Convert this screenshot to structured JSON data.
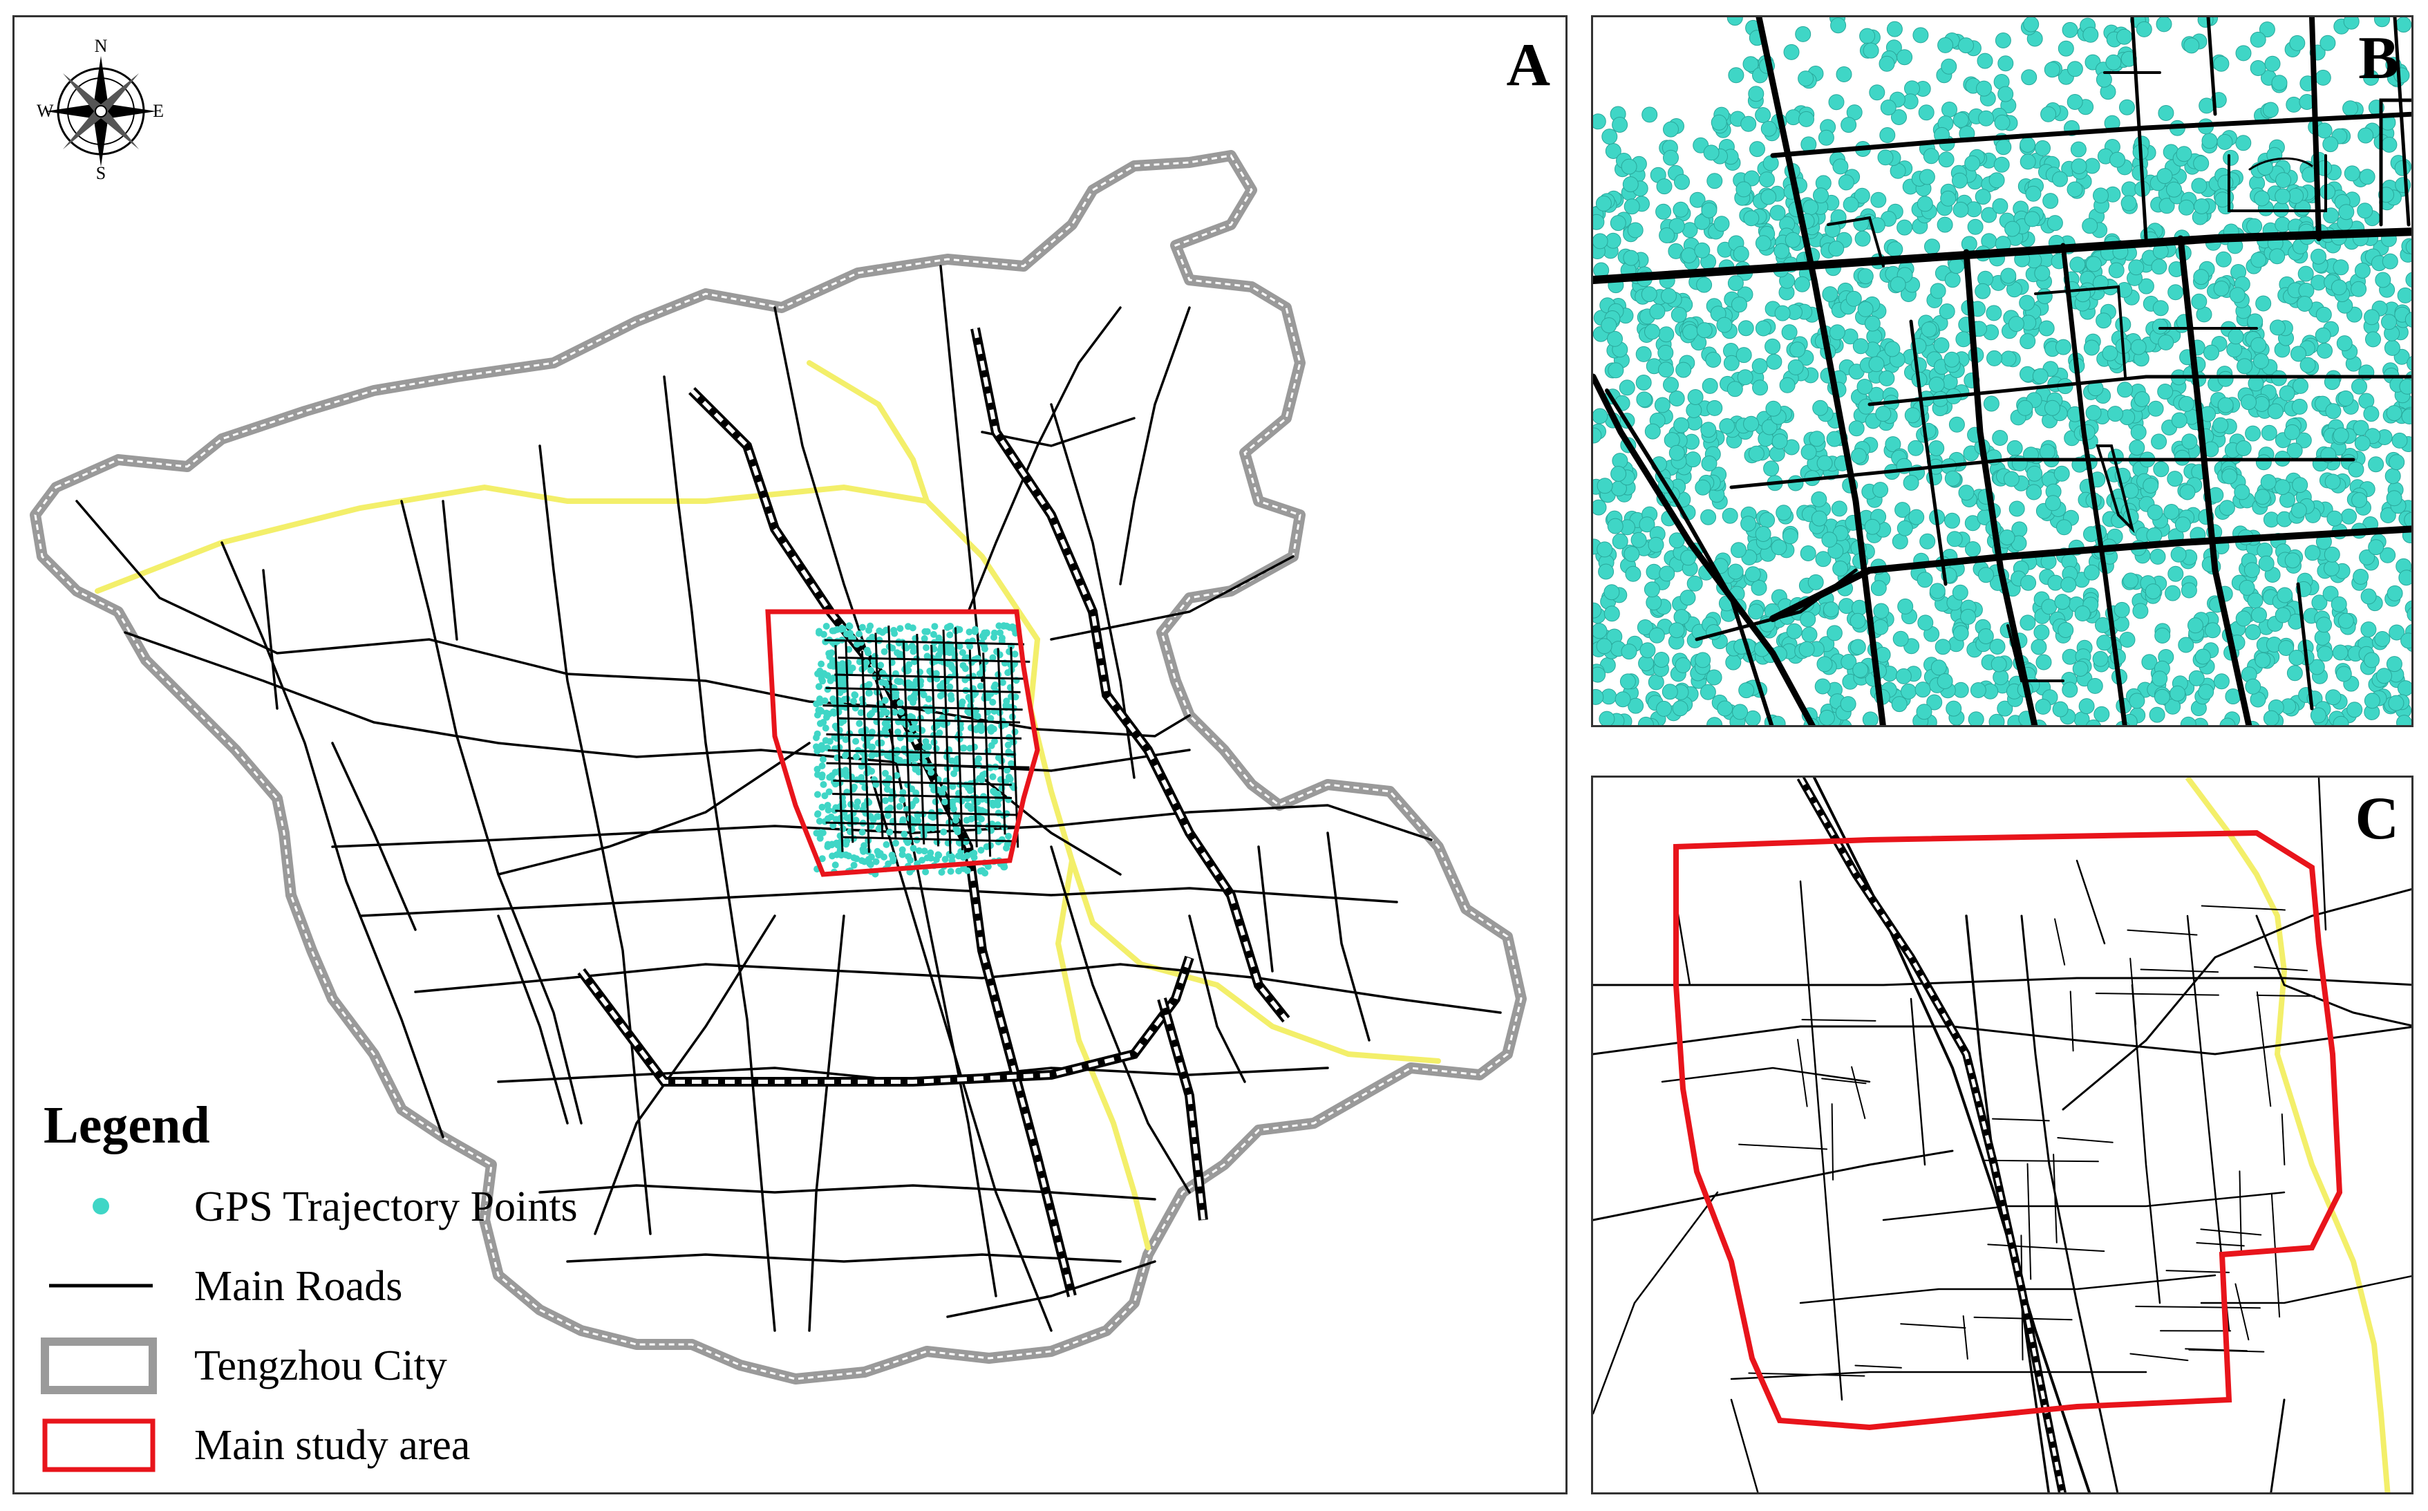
{
  "panels": {
    "a": {
      "letter": "A"
    },
    "b": {
      "letter": "B"
    },
    "c": {
      "letter": "C"
    }
  },
  "compass": {
    "north": "N",
    "south": "S",
    "east": "E",
    "west": "W"
  },
  "legend": {
    "title": "Legend",
    "items": [
      {
        "label": "GPS Trajectory Points",
        "symbol": "gps-dot"
      },
      {
        "label": "Main Roads",
        "symbol": "road-line"
      },
      {
        "label": "Tengzhou City",
        "symbol": "city-boundary"
      },
      {
        "label": "Main study area",
        "symbol": "study-area-box"
      }
    ]
  },
  "colors": {
    "gps_points": "#3fd6c6",
    "roads": "#000000",
    "highway": "#f3ef6a",
    "city_boundary": "#9a9a9a",
    "study_area": "#e8141b"
  }
}
